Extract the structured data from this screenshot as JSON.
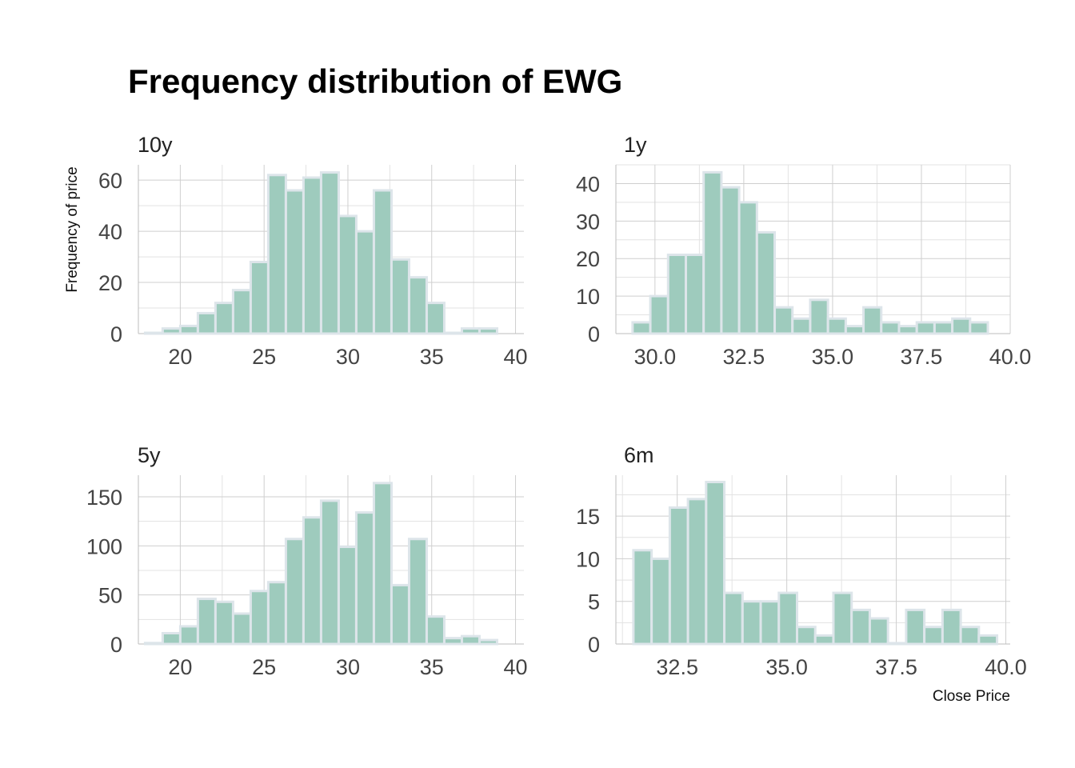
{
  "title": "Frequency distribution of EWG",
  "ylabel": "Frequency of price",
  "xlabel": "Close Price",
  "colors": {
    "bar_fill": "#9ecbbd",
    "bar_outline": "#dde5ea",
    "empty_bin": "#dde5ea"
  },
  "chart_data": [
    {
      "type": "bar",
      "panel": "10y",
      "xlim": [
        17.5,
        40.5
      ],
      "ylim": [
        0,
        66
      ],
      "x_ticks": [
        20,
        25,
        30,
        35,
        40
      ],
      "x_tick_labels": [
        "20",
        "25",
        "30",
        "35",
        "40"
      ],
      "y_ticks": [
        0,
        20,
        40,
        60
      ],
      "y_tick_labels": [
        "0",
        "20",
        "40",
        "60"
      ],
      "bin_start": 17.9,
      "bin_width": 1.05,
      "counts": [
        0.3,
        2,
        3,
        8,
        12,
        17,
        28,
        62,
        56,
        61,
        63,
        46,
        40,
        56,
        29,
        22,
        12,
        0.3,
        2,
        2
      ]
    },
    {
      "type": "bar",
      "panel": "1y",
      "xlim": [
        28.9,
        40.0
      ],
      "ylim": [
        0,
        45
      ],
      "x_ticks": [
        30.0,
        32.5,
        35.0,
        37.5,
        40.0
      ],
      "x_tick_labels": [
        "30.0",
        "32.5",
        "35.0",
        "37.5",
        "40.0"
      ],
      "y_ticks": [
        0,
        10,
        20,
        30,
        40
      ],
      "y_tick_labels": [
        "0",
        "10",
        "20",
        "30",
        "40"
      ],
      "bin_start": 29.37,
      "bin_width": 0.5,
      "counts": [
        3,
        10,
        21,
        21,
        43,
        39,
        35,
        27,
        7,
        4,
        9,
        4,
        2,
        7,
        3,
        2,
        3,
        3,
        4,
        3
      ]
    },
    {
      "type": "bar",
      "panel": "5y",
      "xlim": [
        17.5,
        40.5
      ],
      "ylim": [
        0,
        172
      ],
      "x_ticks": [
        20,
        25,
        30,
        35,
        40
      ],
      "x_tick_labels": [
        "20",
        "25",
        "30",
        "35",
        "40"
      ],
      "y_ticks": [
        0,
        50,
        100,
        150
      ],
      "y_tick_labels": [
        "0",
        "50",
        "100",
        "150"
      ],
      "bin_start": 17.9,
      "bin_width": 1.05,
      "counts": [
        1,
        11,
        18,
        46,
        43,
        31,
        54,
        63,
        107,
        129,
        146,
        99,
        134,
        164,
        60,
        107,
        28,
        6,
        8,
        4
      ]
    },
    {
      "type": "bar",
      "panel": "6m",
      "xlim": [
        31.1,
        40.1
      ],
      "ylim": [
        0,
        19.8
      ],
      "x_ticks": [
        32.5,
        35.0,
        37.5,
        40.0
      ],
      "x_tick_labels": [
        "32.5",
        "35.0",
        "37.5",
        "40.0"
      ],
      "y_ticks": [
        0,
        5,
        10,
        15
      ],
      "y_tick_labels": [
        "0",
        "5",
        "10",
        "15"
      ],
      "bin_start": 31.5,
      "bin_width": 0.415,
      "counts": [
        11,
        10,
        16,
        17,
        19,
        6,
        5,
        5,
        6,
        2,
        1,
        6,
        4,
        3,
        0.1,
        4,
        2,
        4,
        2,
        1
      ]
    }
  ]
}
